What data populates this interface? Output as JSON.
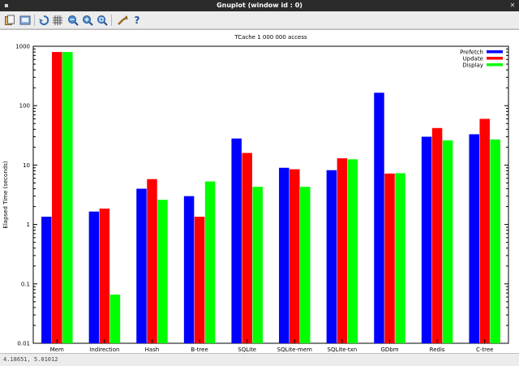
{
  "window": {
    "title": "Gnuplot (window id : 0)"
  },
  "toolbar": {
    "items": [
      {
        "name": "copy-to-clipboard-icon"
      },
      {
        "name": "print-icon"
      },
      {
        "name": "replot-icon"
      },
      {
        "name": "grid-icon"
      },
      {
        "name": "zoom-previous-icon"
      },
      {
        "name": "zoom-next-icon"
      },
      {
        "name": "autoscale-icon"
      },
      {
        "name": "settings-icon"
      },
      {
        "name": "help-icon"
      }
    ]
  },
  "status": {
    "coords": "4.18651, 5.01012"
  },
  "colors": {
    "prefetch": "#0000ff",
    "update": "#ff0000",
    "display": "#00ff00"
  },
  "chart_data": {
    "type": "bar",
    "title": "TCache 1 000 000 access",
    "ylabel": "Elapsed Time (seconds)",
    "xlabel": "",
    "yscale": "log",
    "ylim": [
      0.01,
      1000
    ],
    "yticks": [
      "0.01",
      "0.1",
      "1",
      "10",
      "100",
      "1000"
    ],
    "grid": false,
    "legend_position": "top-right",
    "categories": [
      "Mem",
      "Indirection",
      "Hash",
      "B-tree",
      "SQLite",
      "SQLite-mem",
      "SQLite-txn",
      "GDbm",
      "Redis",
      "C-tree"
    ],
    "series": [
      {
        "name": "Prefetch",
        "color": "#0000ff",
        "values": [
          1.35,
          1.65,
          4.0,
          3.0,
          28,
          9.0,
          8.2,
          165,
          30,
          33
        ]
      },
      {
        "name": "Update",
        "color": "#ff0000",
        "values": [
          800,
          1.85,
          5.8,
          1.35,
          16,
          8.5,
          13,
          7.2,
          42,
          60
        ]
      },
      {
        "name": "Display",
        "color": "#00ff00",
        "values": [
          800,
          0.066,
          2.6,
          5.3,
          4.3,
          4.3,
          12.5,
          7.3,
          26,
          27
        ]
      }
    ]
  }
}
